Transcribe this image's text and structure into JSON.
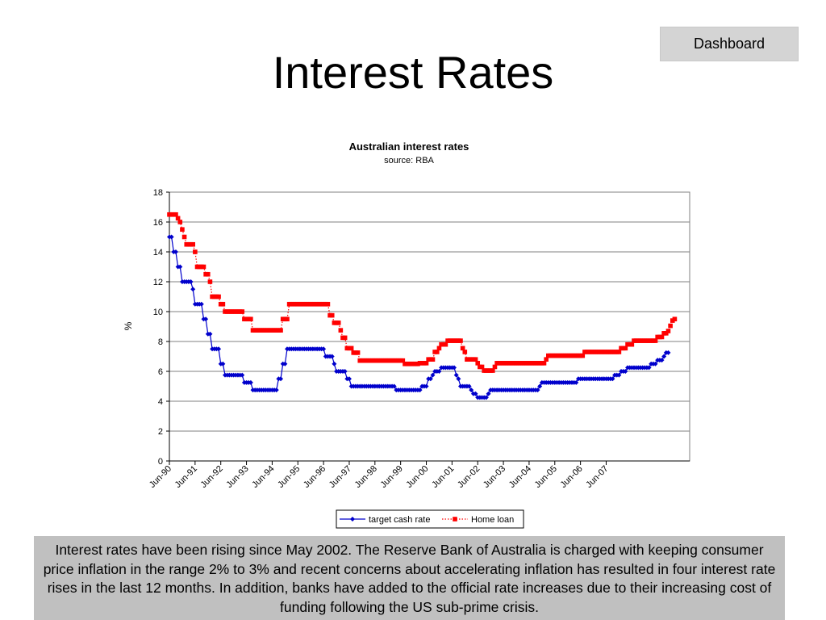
{
  "header": {
    "title": "Interest Rates",
    "dashboard_label": "Dashboard"
  },
  "caption": "Interest rates have been rising since May 2002.  The Reserve Bank of Australia is charged with keeping consumer price inflation in the range 2% to 3% and recent concerns about accelerating inflation has resulted in four interest rate rises in the last 12 months.  In addition, banks have added to the official rate increases due to their increasing cost of funding following the US sub-prime crisis.",
  "chart_data": {
    "type": "line",
    "title": "Australian interest rates",
    "subtitle": "source: RBA",
    "ylabel": "%",
    "xlabel": "",
    "ylim": [
      0,
      18
    ],
    "yticks": [
      0,
      2,
      4,
      6,
      8,
      10,
      12,
      14,
      16,
      18
    ],
    "grid": true,
    "legend": "bottom",
    "x_start": "Jun-90",
    "x_end": "Feb-08",
    "xtick_labels": [
      "Jun-90",
      "Jun-91",
      "Jun-92",
      "Jun-93",
      "Jun-94",
      "Jun-95",
      "Jun-96",
      "Jun-97",
      "Jun-98",
      "Jun-99",
      "Jun-00",
      "Jun-01",
      "Jun-02",
      "Jun-03",
      "Jun-04",
      "Jun-05",
      "Jun-06",
      "Jun-07"
    ],
    "series": [
      {
        "name": "target cash rate",
        "color": "#0000cc",
        "marker": "diamond",
        "line": "solid",
        "values": [
          15,
          15,
          14,
          14,
          13,
          13,
          12,
          12,
          12,
          12,
          12,
          11.5,
          10.5,
          10.5,
          10.5,
          10.5,
          9.5,
          9.5,
          8.5,
          8.5,
          7.5,
          7.5,
          7.5,
          7.5,
          6.5,
          6.5,
          5.75,
          5.75,
          5.75,
          5.75,
          5.75,
          5.75,
          5.75,
          5.75,
          5.75,
          5.25,
          5.25,
          5.25,
          5.25,
          4.75,
          4.75,
          4.75,
          4.75,
          4.75,
          4.75,
          4.75,
          4.75,
          4.75,
          4.75,
          4.75,
          4.75,
          5.5,
          5.5,
          6.5,
          6.5,
          7.5,
          7.5,
          7.5,
          7.5,
          7.5,
          7.5,
          7.5,
          7.5,
          7.5,
          7.5,
          7.5,
          7.5,
          7.5,
          7.5,
          7.5,
          7.5,
          7.5,
          7.5,
          7,
          7,
          7,
          7,
          6.5,
          6,
          6,
          6,
          6,
          6,
          5.5,
          5.5,
          5,
          5,
          5,
          5,
          5,
          5,
          5,
          5,
          5,
          5,
          5,
          5,
          5,
          5,
          5,
          5,
          5,
          5,
          5,
          5,
          5,
          4.75,
          4.75,
          4.75,
          4.75,
          4.75,
          4.75,
          4.75,
          4.75,
          4.75,
          4.75,
          4.75,
          4.75,
          5,
          5,
          5,
          5.5,
          5.5,
          5.75,
          6,
          6,
          6,
          6.25,
          6.25,
          6.25,
          6.25,
          6.25,
          6.25,
          6.25,
          5.75,
          5.5,
          5,
          5,
          5,
          5,
          5,
          4.75,
          4.5,
          4.5,
          4.25,
          4.25,
          4.25,
          4.25,
          4.25,
          4.5,
          4.75,
          4.75,
          4.75,
          4.75,
          4.75,
          4.75,
          4.75,
          4.75,
          4.75,
          4.75,
          4.75,
          4.75,
          4.75,
          4.75,
          4.75,
          4.75,
          4.75,
          4.75,
          4.75,
          4.75,
          4.75,
          4.75,
          4.75,
          5,
          5.25,
          5.25,
          5.25,
          5.25,
          5.25,
          5.25,
          5.25,
          5.25,
          5.25,
          5.25,
          5.25,
          5.25,
          5.25,
          5.25,
          5.25,
          5.25,
          5.25,
          5.5,
          5.5,
          5.5,
          5.5,
          5.5,
          5.5,
          5.5,
          5.5,
          5.5,
          5.5,
          5.5,
          5.5,
          5.5,
          5.5,
          5.5,
          5.5,
          5.5,
          5.75,
          5.75,
          5.75,
          6,
          6,
          6,
          6.25,
          6.25,
          6.25,
          6.25,
          6.25,
          6.25,
          6.25,
          6.25,
          6.25,
          6.25,
          6.25,
          6.5,
          6.5,
          6.5,
          6.75,
          6.75,
          6.75,
          7,
          7.25,
          7.25
        ]
      },
      {
        "name": "Home loan",
        "color": "#ff0000",
        "marker": "square",
        "line": "dotted",
        "values": [
          16.5,
          16.5,
          16.5,
          16.5,
          16.25,
          16,
          15.5,
          15,
          14.5,
          14.5,
          14.5,
          14.5,
          14,
          13,
          13,
          13,
          13,
          12.5,
          12.5,
          12,
          11,
          11,
          11,
          11,
          10.5,
          10.5,
          10,
          10,
          10,
          10,
          10,
          10,
          10,
          10,
          10,
          9.5,
          9.5,
          9.5,
          9.5,
          8.75,
          8.75,
          8.75,
          8.75,
          8.75,
          8.75,
          8.75,
          8.75,
          8.75,
          8.75,
          8.75,
          8.75,
          8.75,
          8.75,
          9.5,
          9.5,
          9.5,
          10.5,
          10.5,
          10.5,
          10.5,
          10.5,
          10.5,
          10.5,
          10.5,
          10.5,
          10.5,
          10.5,
          10.5,
          10.5,
          10.5,
          10.5,
          10.5,
          10.5,
          10.5,
          10.5,
          9.75,
          9.75,
          9.25,
          9.25,
          9.25,
          8.75,
          8.25,
          8.25,
          7.55,
          7.55,
          7.55,
          7.25,
          7.25,
          7.25,
          6.72,
          6.72,
          6.72,
          6.72,
          6.72,
          6.72,
          6.72,
          6.72,
          6.72,
          6.72,
          6.72,
          6.72,
          6.72,
          6.72,
          6.72,
          6.72,
          6.72,
          6.72,
          6.72,
          6.72,
          6.72,
          6.5,
          6.5,
          6.5,
          6.5,
          6.5,
          6.5,
          6.5,
          6.55,
          6.55,
          6.55,
          6.55,
          6.8,
          6.8,
          6.8,
          7.3,
          7.3,
          7.55,
          7.8,
          7.8,
          7.8,
          8.05,
          8.05,
          8.05,
          8.05,
          8.05,
          8.05,
          8.05,
          7.55,
          7.3,
          6.8,
          6.8,
          6.8,
          6.8,
          6.8,
          6.55,
          6.3,
          6.3,
          6.05,
          6.05,
          6.05,
          6.05,
          6.05,
          6.3,
          6.55,
          6.55,
          6.55,
          6.55,
          6.55,
          6.55,
          6.55,
          6.55,
          6.55,
          6.55,
          6.55,
          6.55,
          6.55,
          6.55,
          6.55,
          6.55,
          6.55,
          6.55,
          6.55,
          6.55,
          6.55,
          6.55,
          6.55,
          6.8,
          7.05,
          7.05,
          7.05,
          7.05,
          7.05,
          7.05,
          7.05,
          7.05,
          7.05,
          7.05,
          7.05,
          7.05,
          7.05,
          7.05,
          7.05,
          7.05,
          7.05,
          7.3,
          7.3,
          7.3,
          7.3,
          7.3,
          7.3,
          7.3,
          7.3,
          7.3,
          7.3,
          7.3,
          7.3,
          7.3,
          7.3,
          7.3,
          7.3,
          7.3,
          7.55,
          7.55,
          7.55,
          7.8,
          7.8,
          7.8,
          8.05,
          8.05,
          8.05,
          8.05,
          8.05,
          8.05,
          8.05,
          8.05,
          8.05,
          8.05,
          8.05,
          8.3,
          8.3,
          8.3,
          8.55,
          8.55,
          8.7,
          9.05,
          9.4,
          9.5
        ]
      }
    ]
  }
}
